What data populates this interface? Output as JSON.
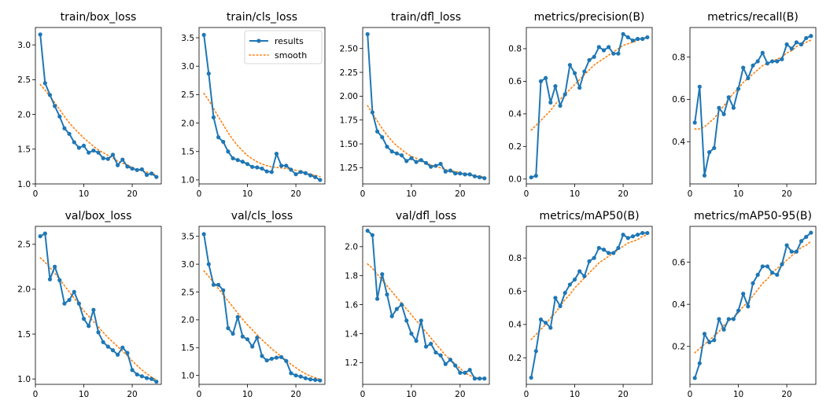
{
  "colors": {
    "results": "#1f77b4",
    "smooth": "#ff7f0e",
    "axes": "#000000"
  },
  "chart_data": [
    {
      "type": "line",
      "title": "train/box_loss",
      "xlim": [
        0,
        26
      ],
      "ylim": [
        1.0,
        3.25
      ],
      "xticks": [
        0,
        10,
        20
      ],
      "xtick_labels": [
        "0",
        "10",
        "20"
      ],
      "yticks": [
        1.0,
        1.5,
        2.0,
        2.5,
        3.0
      ],
      "ytick_labels": [
        "1.0",
        "1.5",
        "2.0",
        "2.5",
        "3.0"
      ],
      "x": [
        1,
        2,
        3,
        4,
        5,
        6,
        7,
        8,
        9,
        10,
        11,
        12,
        13,
        14,
        15,
        16,
        17,
        18,
        19,
        20,
        21,
        22,
        23,
        24,
        25
      ],
      "series": [
        {
          "name": "results",
          "values": [
            3.15,
            2.45,
            2.28,
            2.12,
            1.97,
            1.8,
            1.72,
            1.6,
            1.52,
            1.55,
            1.45,
            1.48,
            1.45,
            1.37,
            1.36,
            1.42,
            1.27,
            1.35,
            1.25,
            1.22,
            1.2,
            1.21,
            1.13,
            1.15,
            1.1
          ]
        },
        {
          "name": "smooth",
          "values": [
            2.43,
            2.35,
            2.26,
            2.17,
            2.07,
            1.97,
            1.88,
            1.8,
            1.73,
            1.66,
            1.6,
            1.54,
            1.49,
            1.45,
            1.41,
            1.37,
            1.33,
            1.3,
            1.27,
            1.24,
            1.21,
            1.19,
            1.17,
            1.15,
            1.13
          ]
        }
      ]
    },
    {
      "type": "line",
      "title": "train/cls_loss",
      "xlim": [
        0,
        26
      ],
      "ylim": [
        0.93,
        3.68
      ],
      "xticks": [
        0,
        10,
        20
      ],
      "xtick_labels": [
        "0",
        "10",
        "20"
      ],
      "yticks": [
        1.0,
        1.5,
        2.0,
        2.5,
        3.0,
        3.5
      ],
      "ytick_labels": [
        "1.0",
        "1.5",
        "2.0",
        "2.5",
        "3.0",
        "3.5"
      ],
      "legend": {
        "placement": "top-right",
        "entries": [
          "results",
          "smooth"
        ]
      },
      "x": [
        1,
        2,
        3,
        4,
        5,
        6,
        7,
        8,
        9,
        10,
        11,
        12,
        13,
        14,
        15,
        16,
        17,
        18,
        19,
        20,
        21,
        22,
        23,
        24,
        25
      ],
      "series": [
        {
          "name": "results",
          "values": [
            3.55,
            2.87,
            2.1,
            1.75,
            1.67,
            1.5,
            1.38,
            1.35,
            1.32,
            1.28,
            1.23,
            1.22,
            1.2,
            1.15,
            1.14,
            1.46,
            1.25,
            1.25,
            1.18,
            1.1,
            1.14,
            1.12,
            1.08,
            1.05,
            1.0
          ]
        },
        {
          "name": "smooth",
          "values": [
            2.52,
            2.4,
            2.26,
            2.11,
            1.97,
            1.83,
            1.71,
            1.6,
            1.51,
            1.43,
            1.37,
            1.32,
            1.28,
            1.25,
            1.23,
            1.22,
            1.21,
            1.2,
            1.19,
            1.17,
            1.15,
            1.13,
            1.1,
            1.08,
            1.06
          ]
        }
      ]
    },
    {
      "type": "line",
      "title": "train/dfl_loss",
      "xlim": [
        0,
        26
      ],
      "ylim": [
        1.08,
        2.72
      ],
      "xticks": [
        0,
        10,
        20
      ],
      "xtick_labels": [
        "0",
        "10",
        "20"
      ],
      "yticks": [
        1.25,
        1.5,
        1.75,
        2.0,
        2.25,
        2.5
      ],
      "ytick_labels": [
        "1.25",
        "1.50",
        "1.75",
        "2.00",
        "2.25",
        "2.50"
      ],
      "x": [
        1,
        2,
        3,
        4,
        5,
        6,
        7,
        8,
        9,
        10,
        11,
        12,
        13,
        14,
        15,
        16,
        17,
        18,
        19,
        20,
        21,
        22,
        23,
        24,
        25
      ],
      "series": [
        {
          "name": "results",
          "values": [
            2.65,
            1.83,
            1.63,
            1.57,
            1.47,
            1.42,
            1.4,
            1.38,
            1.32,
            1.35,
            1.31,
            1.33,
            1.3,
            1.26,
            1.27,
            1.29,
            1.21,
            1.22,
            1.19,
            1.19,
            1.18,
            1.18,
            1.16,
            1.15,
            1.14
          ]
        },
        {
          "name": "smooth",
          "values": [
            1.9,
            1.82,
            1.74,
            1.66,
            1.59,
            1.53,
            1.48,
            1.44,
            1.4,
            1.37,
            1.35,
            1.32,
            1.3,
            1.28,
            1.26,
            1.25,
            1.23,
            1.22,
            1.21,
            1.2,
            1.19,
            1.18,
            1.17,
            1.16,
            1.15
          ]
        }
      ]
    },
    {
      "type": "line",
      "title": "metrics/precision(B)",
      "xlim": [
        0,
        26
      ],
      "ylim": [
        -0.03,
        0.93
      ],
      "xticks": [
        0,
        10,
        20
      ],
      "xtick_labels": [
        "0",
        "10",
        "20"
      ],
      "yticks": [
        0.0,
        0.2,
        0.4,
        0.6,
        0.8
      ],
      "ytick_labels": [
        "0.0",
        "0.2",
        "0.4",
        "0.6",
        "0.8"
      ],
      "x": [
        1,
        2,
        3,
        4,
        5,
        6,
        7,
        8,
        9,
        10,
        11,
        12,
        13,
        14,
        15,
        16,
        17,
        18,
        19,
        20,
        21,
        22,
        23,
        24,
        25
      ],
      "series": [
        {
          "name": "results",
          "values": [
            0.01,
            0.02,
            0.6,
            0.62,
            0.47,
            0.57,
            0.45,
            0.52,
            0.7,
            0.65,
            0.56,
            0.66,
            0.73,
            0.75,
            0.81,
            0.79,
            0.81,
            0.77,
            0.77,
            0.89,
            0.87,
            0.85,
            0.86,
            0.86,
            0.87
          ]
        },
        {
          "name": "smooth",
          "values": [
            0.3,
            0.33,
            0.36,
            0.39,
            0.42,
            0.46,
            0.49,
            0.52,
            0.55,
            0.58,
            0.61,
            0.64,
            0.67,
            0.7,
            0.72,
            0.74,
            0.76,
            0.78,
            0.8,
            0.82,
            0.83,
            0.84,
            0.85,
            0.86,
            0.87
          ]
        }
      ]
    },
    {
      "type": "line",
      "title": "metrics/recall(B)",
      "xlim": [
        0,
        26
      ],
      "ylim": [
        0.2,
        0.94
      ],
      "xticks": [
        0,
        10,
        20
      ],
      "xtick_labels": [
        "0",
        "10",
        "20"
      ],
      "yticks": [
        0.4,
        0.6,
        0.8
      ],
      "ytick_labels": [
        "0.4",
        "0.6",
        "0.8"
      ],
      "x": [
        1,
        2,
        3,
        4,
        5,
        6,
        7,
        8,
        9,
        10,
        11,
        12,
        13,
        14,
        15,
        16,
        17,
        18,
        19,
        20,
        21,
        22,
        23,
        24,
        25
      ],
      "series": [
        {
          "name": "results",
          "values": [
            0.49,
            0.66,
            0.24,
            0.35,
            0.37,
            0.56,
            0.53,
            0.61,
            0.56,
            0.65,
            0.75,
            0.7,
            0.76,
            0.78,
            0.82,
            0.77,
            0.78,
            0.78,
            0.79,
            0.86,
            0.84,
            0.87,
            0.86,
            0.89,
            0.9
          ]
        },
        {
          "name": "smooth",
          "values": [
            0.46,
            0.46,
            0.47,
            0.49,
            0.51,
            0.54,
            0.57,
            0.6,
            0.63,
            0.65,
            0.68,
            0.7,
            0.72,
            0.74,
            0.76,
            0.77,
            0.78,
            0.79,
            0.8,
            0.82,
            0.83,
            0.85,
            0.86,
            0.87,
            0.88
          ]
        }
      ]
    },
    {
      "type": "line",
      "title": "val/box_loss",
      "xlim": [
        0,
        26
      ],
      "ylim": [
        0.94,
        2.7
      ],
      "xticks": [
        0,
        10,
        20
      ],
      "xtick_labels": [
        "0",
        "10",
        "20"
      ],
      "yticks": [
        1.0,
        1.5,
        2.0,
        2.5
      ],
      "ytick_labels": [
        "1.0",
        "1.5",
        "2.0",
        "2.5"
      ],
      "x": [
        1,
        2,
        3,
        4,
        5,
        6,
        7,
        8,
        9,
        10,
        11,
        12,
        13,
        14,
        15,
        16,
        17,
        18,
        19,
        20,
        21,
        22,
        23,
        24,
        25
      ],
      "series": [
        {
          "name": "results",
          "values": [
            2.59,
            2.62,
            2.11,
            2.25,
            2.1,
            1.84,
            1.88,
            1.97,
            1.84,
            1.67,
            1.59,
            1.77,
            1.52,
            1.41,
            1.36,
            1.32,
            1.27,
            1.35,
            1.29,
            1.1,
            1.05,
            1.03,
            1.01,
            1.0,
            0.97
          ]
        },
        {
          "name": "smooth",
          "values": [
            2.35,
            2.3,
            2.24,
            2.18,
            2.11,
            2.04,
            1.97,
            1.9,
            1.83,
            1.76,
            1.7,
            1.64,
            1.58,
            1.52,
            1.46,
            1.41,
            1.36,
            1.31,
            1.26,
            1.2,
            1.15,
            1.1,
            1.06,
            1.02,
            0.99
          ]
        }
      ]
    },
    {
      "type": "line",
      "title": "val/cls_loss",
      "xlim": [
        0,
        26
      ],
      "ylim": [
        0.84,
        3.68
      ],
      "xticks": [
        0,
        10,
        20
      ],
      "xtick_labels": [
        "0",
        "10",
        "20"
      ],
      "yticks": [
        1.0,
        1.5,
        2.0,
        2.5,
        3.0,
        3.5
      ],
      "ytick_labels": [
        "1.0",
        "1.5",
        "2.0",
        "2.5",
        "3.0",
        "3.5"
      ],
      "x": [
        1,
        2,
        3,
        4,
        5,
        6,
        7,
        8,
        9,
        10,
        11,
        12,
        13,
        14,
        15,
        16,
        17,
        18,
        19,
        20,
        21,
        22,
        23,
        24,
        25
      ],
      "series": [
        {
          "name": "results",
          "values": [
            3.54,
            3.0,
            2.63,
            2.63,
            2.53,
            1.85,
            1.75,
            2.05,
            1.7,
            1.65,
            1.52,
            1.68,
            1.35,
            1.27,
            1.3,
            1.32,
            1.33,
            1.26,
            1.04,
            1.0,
            0.98,
            0.95,
            0.93,
            0.92,
            0.91
          ]
        },
        {
          "name": "smooth",
          "values": [
            2.88,
            2.78,
            2.67,
            2.56,
            2.45,
            2.34,
            2.23,
            2.12,
            2.01,
            1.91,
            1.82,
            1.73,
            1.64,
            1.56,
            1.48,
            1.41,
            1.34,
            1.27,
            1.2,
            1.14,
            1.08,
            1.03,
            0.99,
            0.96,
            0.93
          ]
        }
      ]
    },
    {
      "type": "line",
      "title": "val/dfl_loss",
      "xlim": [
        0,
        26
      ],
      "ylim": [
        1.05,
        2.14
      ],
      "xticks": [
        0,
        10,
        20
      ],
      "xtick_labels": [
        "0",
        "10",
        "20"
      ],
      "yticks": [
        1.2,
        1.4,
        1.6,
        1.8,
        2.0
      ],
      "ytick_labels": [
        "1.2",
        "1.4",
        "1.6",
        "1.8",
        "2.0"
      ],
      "x": [
        1,
        2,
        3,
        4,
        5,
        6,
        7,
        8,
        9,
        10,
        11,
        12,
        13,
        14,
        15,
        16,
        17,
        18,
        19,
        20,
        21,
        22,
        23,
        24,
        25
      ],
      "series": [
        {
          "name": "results",
          "values": [
            2.11,
            2.08,
            1.64,
            1.81,
            1.67,
            1.52,
            1.57,
            1.6,
            1.49,
            1.4,
            1.35,
            1.49,
            1.31,
            1.33,
            1.27,
            1.25,
            1.19,
            1.22,
            1.18,
            1.13,
            1.13,
            1.15,
            1.09,
            1.09,
            1.09
          ]
        },
        {
          "name": "smooth",
          "values": [
            1.88,
            1.85,
            1.81,
            1.77,
            1.73,
            1.69,
            1.65,
            1.61,
            1.57,
            1.53,
            1.49,
            1.45,
            1.41,
            1.37,
            1.33,
            1.29,
            1.25,
            1.22,
            1.19,
            1.16,
            1.13,
            1.11,
            1.1,
            1.09,
            1.09
          ]
        }
      ]
    },
    {
      "type": "line",
      "title": "metrics/mAP50(B)",
      "xlim": [
        0,
        26
      ],
      "ylim": [
        0.04,
        0.99
      ],
      "xticks": [
        0,
        10,
        20
      ],
      "xtick_labels": [
        "0",
        "10",
        "20"
      ],
      "yticks": [
        0.2,
        0.4,
        0.6,
        0.8
      ],
      "ytick_labels": [
        "0.2",
        "0.4",
        "0.6",
        "0.8"
      ],
      "x": [
        1,
        2,
        3,
        4,
        5,
        6,
        7,
        8,
        9,
        10,
        11,
        12,
        13,
        14,
        15,
        16,
        17,
        18,
        19,
        20,
        21,
        22,
        23,
        24,
        25
      ],
      "series": [
        {
          "name": "results",
          "values": [
            0.08,
            0.24,
            0.43,
            0.41,
            0.38,
            0.56,
            0.51,
            0.59,
            0.64,
            0.67,
            0.72,
            0.69,
            0.78,
            0.8,
            0.86,
            0.85,
            0.83,
            0.83,
            0.86,
            0.94,
            0.92,
            0.93,
            0.94,
            0.95,
            0.95
          ]
        },
        {
          "name": "smooth",
          "values": [
            0.31,
            0.34,
            0.37,
            0.4,
            0.44,
            0.47,
            0.51,
            0.55,
            0.58,
            0.62,
            0.65,
            0.68,
            0.71,
            0.74,
            0.77,
            0.79,
            0.81,
            0.83,
            0.85,
            0.87,
            0.89,
            0.9,
            0.91,
            0.93,
            0.94
          ]
        }
      ]
    },
    {
      "type": "line",
      "title": "metrics/mAP50-95(B)",
      "xlim": [
        0,
        26
      ],
      "ylim": [
        0.02,
        0.77
      ],
      "xticks": [
        0,
        10,
        20
      ],
      "xtick_labels": [
        "0",
        "10",
        "20"
      ],
      "yticks": [
        0.2,
        0.4,
        0.6
      ],
      "ytick_labels": [
        "0.2",
        "0.4",
        "0.6"
      ],
      "x": [
        1,
        2,
        3,
        4,
        5,
        6,
        7,
        8,
        9,
        10,
        11,
        12,
        13,
        14,
        15,
        16,
        17,
        18,
        19,
        20,
        21,
        22,
        23,
        24,
        25
      ],
      "series": [
        {
          "name": "results",
          "values": [
            0.05,
            0.12,
            0.26,
            0.22,
            0.23,
            0.33,
            0.28,
            0.33,
            0.33,
            0.37,
            0.45,
            0.39,
            0.5,
            0.54,
            0.58,
            0.58,
            0.55,
            0.54,
            0.59,
            0.68,
            0.65,
            0.65,
            0.7,
            0.72,
            0.74
          ]
        },
        {
          "name": "smooth",
          "values": [
            0.17,
            0.19,
            0.21,
            0.23,
            0.25,
            0.27,
            0.3,
            0.32,
            0.34,
            0.36,
            0.39,
            0.41,
            0.44,
            0.47,
            0.5,
            0.52,
            0.55,
            0.57,
            0.59,
            0.61,
            0.63,
            0.65,
            0.67,
            0.68,
            0.7
          ]
        }
      ]
    }
  ]
}
